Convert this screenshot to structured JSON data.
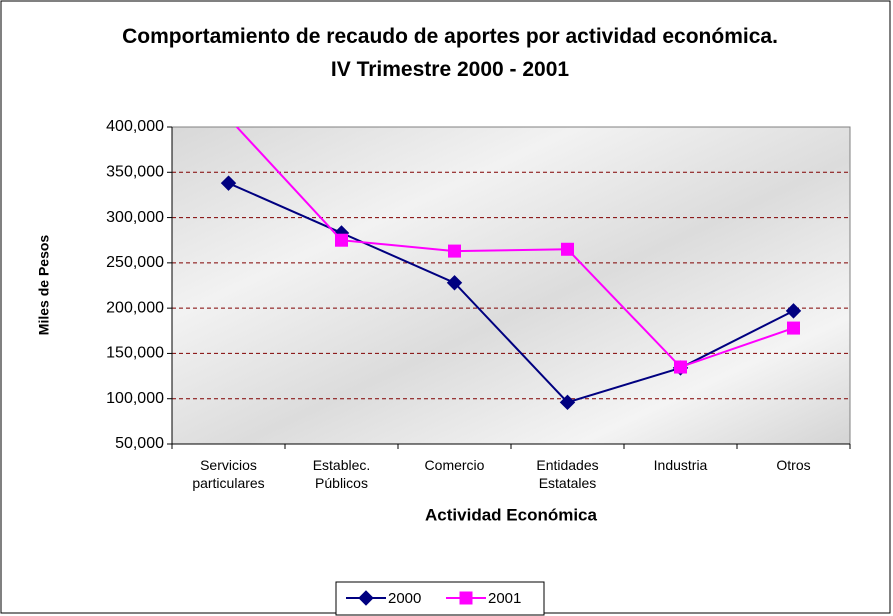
{
  "chart_data": {
    "type": "line",
    "title": "Comportamiento de recaudo de aportes por actividad económica.  IV Trimestre 2000 - 2001",
    "x_label": "Actividad Económica",
    "y_label": "Miles de Pesos",
    "categories": [
      "Servicios particulares",
      "Establec. Públicos",
      "Comercio",
      "Entidades Estatales",
      "Industria",
      "Otros"
    ],
    "series": [
      {
        "name": "2000",
        "color": "#000080",
        "marker": "diamond",
        "values": [
          338000,
          283000,
          228000,
          96000,
          134000,
          197000
        ]
      },
      {
        "name": "2001",
        "color": "#ff00ff",
        "marker": "square",
        "values": [
          410000,
          275000,
          263000,
          265000,
          135000,
          178000
        ]
      }
    ],
    "ylim": [
      50000,
      400000
    ],
    "yticks": [
      {
        "value": 50000,
        "label": "50,000"
      },
      {
        "value": 100000,
        "label": "100,000"
      },
      {
        "value": 150000,
        "label": "150,000"
      },
      {
        "value": 200000,
        "label": "200,000"
      },
      {
        "value": 250000,
        "label": "250,000"
      },
      {
        "value": 300000,
        "label": "300,000"
      },
      {
        "value": 350000,
        "label": "350,000"
      },
      {
        "value": 400000,
        "label": "400,000"
      }
    ],
    "grid": true,
    "legend": "bottom"
  }
}
